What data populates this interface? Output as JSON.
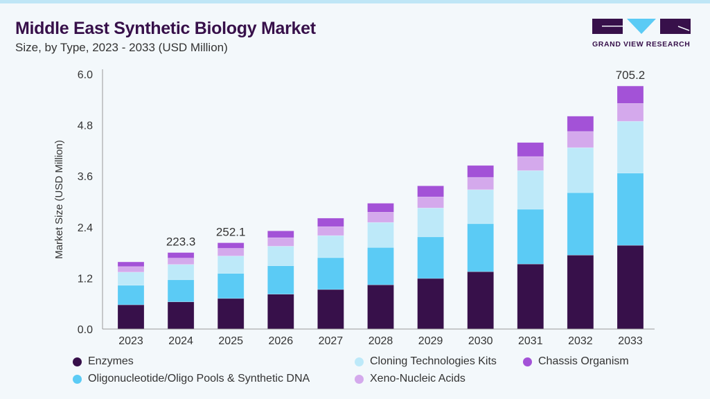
{
  "header": {
    "title": "Middle East Synthetic Biology Market",
    "subtitle": "Size, by Type, 2023 - 2033 (USD Million)"
  },
  "logo": {
    "text": "GRAND VIEW RESEARCH"
  },
  "chart_data": {
    "type": "bar",
    "stacked": true,
    "ylabel": "Market Size (USD Million)",
    "xlabel": "",
    "ylim": [
      0,
      6.0
    ],
    "yticks": [
      "0.0",
      "1.2",
      "2.4",
      "3.6",
      "4.8",
      "6.0"
    ],
    "categories": [
      "2023",
      "2024",
      "2025",
      "2026",
      "2027",
      "2028",
      "2029",
      "2030",
      "2031",
      "2032",
      "2033"
    ],
    "series": [
      {
        "name": "Enzymes",
        "color": "#37104a",
        "values": [
          0.57,
          0.64,
          0.72,
          0.82,
          0.93,
          1.04,
          1.19,
          1.35,
          1.53,
          1.74,
          1.97
        ]
      },
      {
        "name": "Oligonucleotide/Oligo Pools & Synthetic DNA",
        "color": "#5bcbf5",
        "values": [
          0.46,
          0.52,
          0.59,
          0.67,
          0.75,
          0.88,
          0.98,
          1.13,
          1.29,
          1.47,
          1.7
        ]
      },
      {
        "name": "Cloning Technologies Kits",
        "color": "#bde9f9",
        "values": [
          0.31,
          0.36,
          0.41,
          0.46,
          0.52,
          0.59,
          0.68,
          0.8,
          0.91,
          1.06,
          1.22
        ]
      },
      {
        "name": "Xeno-Nucleic Acids",
        "color": "#d4a9ec",
        "values": [
          0.13,
          0.15,
          0.18,
          0.2,
          0.21,
          0.24,
          0.26,
          0.29,
          0.33,
          0.38,
          0.42
        ]
      },
      {
        "name": "Chassis Organism",
        "color": "#a352d7",
        "values": [
          0.11,
          0.13,
          0.13,
          0.16,
          0.2,
          0.21,
          0.26,
          0.28,
          0.33,
          0.36,
          0.41
        ]
      }
    ],
    "annotations": [
      {
        "category": "2024",
        "text": "223.3"
      },
      {
        "category": "2025",
        "text": "252.1"
      },
      {
        "category": "2033",
        "text": "705.2"
      }
    ],
    "grid": false,
    "legend_placement": "bottom"
  }
}
